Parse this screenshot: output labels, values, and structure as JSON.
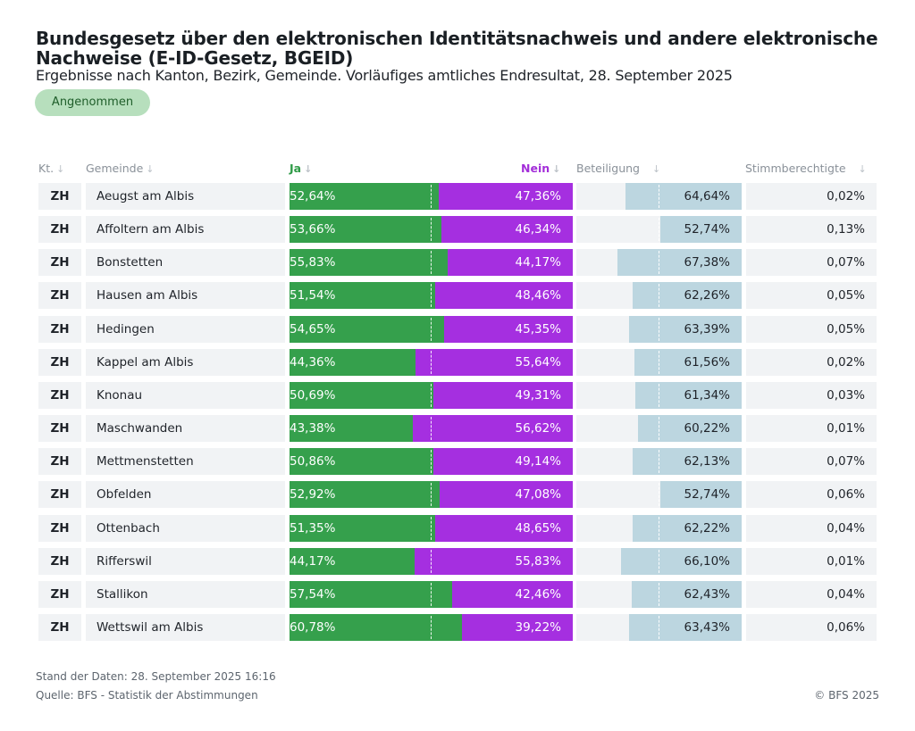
{
  "title": "Bundesgesetz über den elektronischen Identitätsnachweis und andere elektronische Nachweise (E-ID-Gesetz, BGEID)",
  "subtitle": "Ergebnisse nach Kanton, Bezirk, Gemeinde. Vorläufiges amtliches Endresultat, 28. September 2025",
  "badge": "Angenommen",
  "columns": {
    "kt": "Kt.",
    "gemeinde": "Gemeinde",
    "ja": "Ja",
    "nein": "Nein",
    "beteiligung": "Beteiligung",
    "stimmberechtigte": "Stimmberechtigte",
    "sort_arrow": "↓"
  },
  "colors": {
    "ja": "#35a04c",
    "nein": "#a52fe0",
    "beteiligung": "#bcd6e0",
    "badge": "#b7dfbd"
  },
  "footer": {
    "stand": "Stand der Daten: 28. September 2025 16:16",
    "quelle": "Quelle: BFS - Statistik der Abstimmungen",
    "copyright": "© BFS 2025"
  },
  "chart_data": {
    "type": "table",
    "rows": [
      {
        "kanton": "ZH",
        "gemeinde": "Aeugst am Albis",
        "ja": 52.64,
        "nein": 47.36,
        "beteiligung": 64.64,
        "stimmberechtigte": 0.02,
        "ja_label": "52,64%",
        "nein_label": "47,36%",
        "beteiligung_label": "64,64%",
        "stimmberechtigte_label": "0,02%"
      },
      {
        "kanton": "ZH",
        "gemeinde": "Affoltern am Albis",
        "ja": 53.66,
        "nein": 46.34,
        "beteiligung": 52.74,
        "stimmberechtigte": 0.13,
        "ja_label": "53,66%",
        "nein_label": "46,34%",
        "beteiligung_label": "52,74%",
        "stimmberechtigte_label": "0,13%"
      },
      {
        "kanton": "ZH",
        "gemeinde": "Bonstetten",
        "ja": 55.83,
        "nein": 44.17,
        "beteiligung": 67.38,
        "stimmberechtigte": 0.07,
        "ja_label": "55,83%",
        "nein_label": "44,17%",
        "beteiligung_label": "67,38%",
        "stimmberechtigte_label": "0,07%"
      },
      {
        "kanton": "ZH",
        "gemeinde": "Hausen am Albis",
        "ja": 51.54,
        "nein": 48.46,
        "beteiligung": 62.26,
        "stimmberechtigte": 0.05,
        "ja_label": "51,54%",
        "nein_label": "48,46%",
        "beteiligung_label": "62,26%",
        "stimmberechtigte_label": "0,05%"
      },
      {
        "kanton": "ZH",
        "gemeinde": "Hedingen",
        "ja": 54.65,
        "nein": 45.35,
        "beteiligung": 63.39,
        "stimmberechtigte": 0.05,
        "ja_label": "54,65%",
        "nein_label": "45,35%",
        "beteiligung_label": "63,39%",
        "stimmberechtigte_label": "0,05%"
      },
      {
        "kanton": "ZH",
        "gemeinde": "Kappel am Albis",
        "ja": 44.36,
        "nein": 55.64,
        "beteiligung": 61.56,
        "stimmberechtigte": 0.02,
        "ja_label": "44,36%",
        "nein_label": "55,64%",
        "beteiligung_label": "61,56%",
        "stimmberechtigte_label": "0,02%"
      },
      {
        "kanton": "ZH",
        "gemeinde": "Knonau",
        "ja": 50.69,
        "nein": 49.31,
        "beteiligung": 61.34,
        "stimmberechtigte": 0.03,
        "ja_label": "50,69%",
        "nein_label": "49,31%",
        "beteiligung_label": "61,34%",
        "stimmberechtigte_label": "0,03%"
      },
      {
        "kanton": "ZH",
        "gemeinde": "Maschwanden",
        "ja": 43.38,
        "nein": 56.62,
        "beteiligung": 60.22,
        "stimmberechtigte": 0.01,
        "ja_label": "43,38%",
        "nein_label": "56,62%",
        "beteiligung_label": "60,22%",
        "stimmberechtigte_label": "0,01%"
      },
      {
        "kanton": "ZH",
        "gemeinde": "Mettmenstetten",
        "ja": 50.86,
        "nein": 49.14,
        "beteiligung": 62.13,
        "stimmberechtigte": 0.07,
        "ja_label": "50,86%",
        "nein_label": "49,14%",
        "beteiligung_label": "62,13%",
        "stimmberechtigte_label": "0,07%"
      },
      {
        "kanton": "ZH",
        "gemeinde": "Obfelden",
        "ja": 52.92,
        "nein": 47.08,
        "beteiligung": 52.74,
        "stimmberechtigte": 0.06,
        "ja_label": "52,92%",
        "nein_label": "47,08%",
        "beteiligung_label": "52,74%",
        "stimmberechtigte_label": "0,06%"
      },
      {
        "kanton": "ZH",
        "gemeinde": "Ottenbach",
        "ja": 51.35,
        "nein": 48.65,
        "beteiligung": 62.22,
        "stimmberechtigte": 0.04,
        "ja_label": "51,35%",
        "nein_label": "48,65%",
        "beteiligung_label": "62,22%",
        "stimmberechtigte_label": "0,04%"
      },
      {
        "kanton": "ZH",
        "gemeinde": "Rifferswil",
        "ja": 44.17,
        "nein": 55.83,
        "beteiligung": 66.1,
        "stimmberechtigte": 0.01,
        "ja_label": "44,17%",
        "nein_label": "55,83%",
        "beteiligung_label": "66,10%",
        "stimmberechtigte_label": "0,01%"
      },
      {
        "kanton": "ZH",
        "gemeinde": "Stallikon",
        "ja": 57.54,
        "nein": 42.46,
        "beteiligung": 62.43,
        "stimmberechtigte": 0.04,
        "ja_label": "57,54%",
        "nein_label": "42,46%",
        "beteiligung_label": "62,43%",
        "stimmberechtigte_label": "0,04%"
      },
      {
        "kanton": "ZH",
        "gemeinde": "Wettswil am Albis",
        "ja": 60.78,
        "nein": 39.22,
        "beteiligung": 63.43,
        "stimmberechtigte": 0.06,
        "ja_label": "60,78%",
        "nein_label": "39,22%",
        "beteiligung_label": "63,43%",
        "stimmberechtigte_label": "0,06%"
      }
    ]
  }
}
